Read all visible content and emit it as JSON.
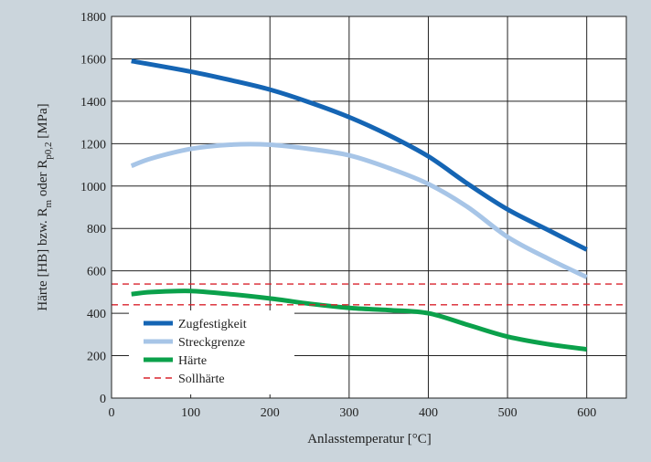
{
  "chart_data": {
    "type": "line",
    "xlabel": "Anlasstemperatur [°C]",
    "ylabel": {
      "pre": "Härte [HB] bzw. R",
      "sub1": "m",
      "mid": " oder R",
      "sub2": "p0,2",
      "post": " [MPa]"
    },
    "xlim": [
      0,
      650
    ],
    "ylim": [
      0,
      1800
    ],
    "xticks": [
      0,
      100,
      200,
      300,
      400,
      500,
      600
    ],
    "yticks": [
      0,
      200,
      400,
      600,
      800,
      1000,
      1200,
      1400,
      1600,
      1800
    ],
    "grid": true,
    "legend_position": "bottom-left",
    "series": [
      {
        "name": "Zugfestigkeit",
        "color": "#1565b4",
        "style": "solid",
        "x": [
          25,
          100,
          150,
          200,
          250,
          300,
          350,
          400,
          450,
          500,
          550,
          600
        ],
        "y": [
          1590,
          1540,
          1500,
          1455,
          1395,
          1325,
          1240,
          1140,
          1010,
          890,
          795,
          700
        ]
      },
      {
        "name": "Streckgrenze",
        "color": "#a7c5e7",
        "style": "solid",
        "x": [
          25,
          50,
          100,
          150,
          200,
          250,
          300,
          350,
          400,
          450,
          500,
          550,
          600
        ],
        "y": [
          1095,
          1130,
          1175,
          1195,
          1195,
          1175,
          1145,
          1085,
          1010,
          900,
          760,
          660,
          570
        ]
      },
      {
        "name": "Härte",
        "color": "#0ba14b",
        "style": "solid",
        "x": [
          25,
          50,
          100,
          150,
          200,
          250,
          300,
          350,
          400,
          450,
          500,
          550,
          600
        ],
        "y": [
          490,
          500,
          505,
          490,
          470,
          445,
          425,
          415,
          400,
          345,
          290,
          255,
          230
        ]
      },
      {
        "name": "Sollhärte",
        "color": "#d9232d",
        "style": "dashed",
        "lines": [
          538,
          440
        ]
      }
    ]
  }
}
